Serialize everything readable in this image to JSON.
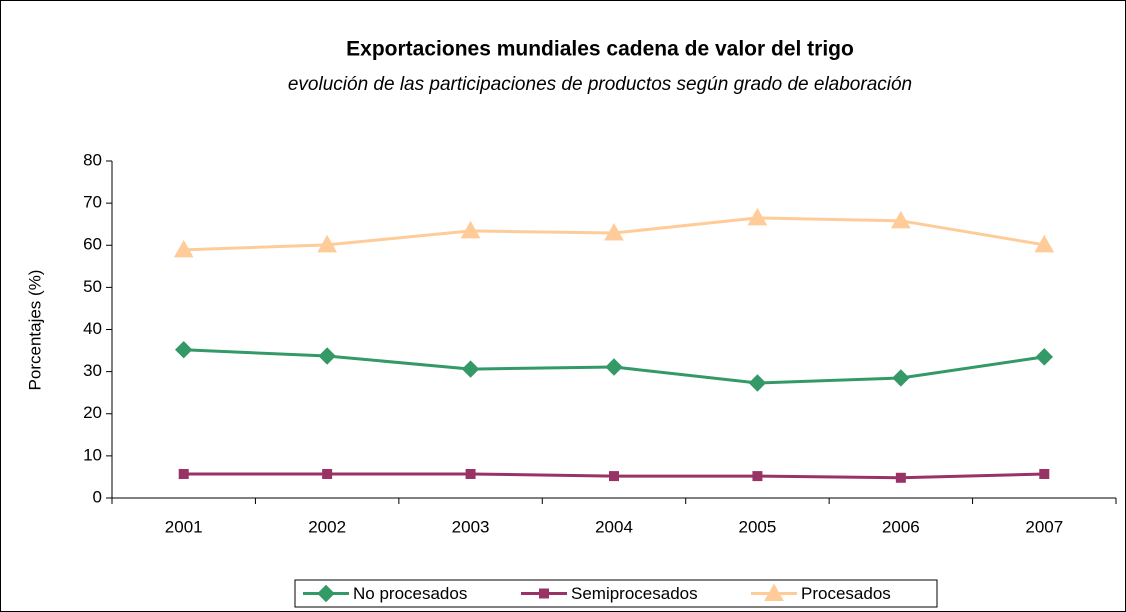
{
  "chart_data": {
    "type": "line",
    "title": "Exportaciones mundiales cadena de valor del trigo",
    "subtitle": "evolución de las participaciones de productos según grado de elaboración",
    "y_label": "Porcentajes (%)",
    "categories": [
      "2001",
      "2002",
      "2003",
      "2004",
      "2005",
      "2006",
      "2007"
    ],
    "series": [
      {
        "name": "No procesados",
        "color": "#339966",
        "marker": "diamond",
        "values": [
          35.2,
          33.7,
          30.6,
          31.1,
          27.3,
          28.5,
          33.5
        ]
      },
      {
        "name": "Semiprocesados",
        "color": "#993366",
        "marker": "square",
        "values": [
          5.7,
          5.7,
          5.7,
          5.2,
          5.2,
          4.8,
          5.7
        ]
      },
      {
        "name": "Procesados",
        "color": "#FFCC99",
        "marker": "triangle",
        "values": [
          58.9,
          60.1,
          63.4,
          62.9,
          66.5,
          65.8,
          60.1
        ]
      }
    ],
    "ylim": [
      0,
      80
    ],
    "yticks": [
      0,
      10,
      20,
      30,
      40,
      50,
      60,
      70,
      80
    ],
    "legend": "bottom"
  }
}
